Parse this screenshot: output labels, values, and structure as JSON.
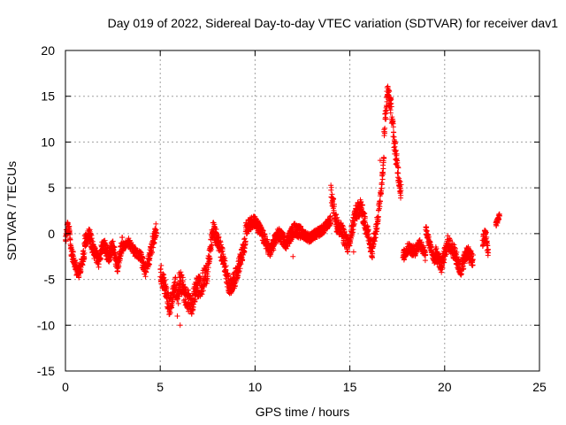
{
  "chart_data": {
    "type": "scatter",
    "title": "Day 019 of 2022, Sidereal Day-to-day VTEC variation (SDTVAR) for receiver dav1",
    "xlabel": "GPS time / hours",
    "ylabel": "SDTVAR / TECUs",
    "xlim": [
      0,
      25
    ],
    "ylim": [
      -15,
      20
    ],
    "xticks": [
      0,
      5,
      10,
      15,
      20,
      25
    ],
    "yticks": [
      -15,
      -10,
      -5,
      0,
      5,
      10,
      15,
      20
    ],
    "grid": true,
    "marker": "plus",
    "color": "#ff0000",
    "series": [
      {
        "name": "dav1",
        "segments": [
          {
            "x0": 0.0,
            "x1": 0.3,
            "y": [
              -1.0,
              1.0,
              0.5,
              -2.0
            ],
            "spread": 1.2
          },
          {
            "x0": 0.3,
            "x1": 1.0,
            "y": [
              -2.0,
              -3.0,
              -4.5,
              -3.5,
              -2.0
            ],
            "spread": 1.3
          },
          {
            "x0": 1.0,
            "x1": 3.0,
            "y": [
              -1.0,
              0.0,
              -2.0,
              -3.0,
              -1.0,
              -2.5,
              -1.5,
              -3.5,
              -1.0
            ],
            "spread": 1.6
          },
          {
            "x0": 3.0,
            "x1": 4.0,
            "y": [
              -1.5,
              -1.0,
              -2.0,
              -2.5
            ],
            "spread": 1.0
          },
          {
            "x0": 4.0,
            "x1": 4.8,
            "y": [
              -3.0,
              -4.0,
              -3.0,
              -1.0,
              0.5
            ],
            "spread": 1.6
          },
          {
            "x0": 5.0,
            "x1": 6.0,
            "y": [
              -4.0,
              -6.0,
              -8.0,
              -5.5,
              -7.0
            ],
            "spread": 2.2
          },
          {
            "x0": 6.0,
            "x1": 7.5,
            "y": [
              -5.0,
              -6.5,
              -8.0,
              -6.0,
              -5.5,
              -4.0
            ],
            "spread": 2.4
          },
          {
            "x0": 7.5,
            "x1": 9.5,
            "y": [
              -4.0,
              0.5,
              -1.0,
              -3.0,
              -6.0,
              -5.0,
              -3.0,
              -1.0
            ],
            "spread": 1.8
          },
          {
            "x0": 9.5,
            "x1": 12.5,
            "y": [
              0.5,
              1.5,
              0.0,
              -2.0,
              0.0,
              -1.0,
              0.5,
              0.0
            ],
            "spread": 1.4
          },
          {
            "x0": 12.5,
            "x1": 14.0,
            "y": [
              0.0,
              -0.5,
              0.0,
              0.5,
              1.5
            ],
            "spread": 1.0
          },
          {
            "x0": 14.0,
            "x1": 16.2,
            "y": [
              4.5,
              1.0,
              0.0,
              -1.5,
              2.0,
              3.0,
              0.5,
              -2.0
            ],
            "spread": 1.8
          },
          {
            "x0": 16.2,
            "x1": 16.8,
            "y": [
              -1.0,
              0.0,
              2.0,
              5.0,
              8.0
            ],
            "spread": 1.4
          },
          {
            "x0": 16.8,
            "x1": 17.7,
            "y": [
              11.0,
              15.5,
              14.0,
              10.0,
              7.0,
              4.5
            ],
            "spread": 2.0
          },
          {
            "x0": 17.8,
            "x1": 19.0,
            "y": [
              -2.5,
              -1.5,
              -2.0,
              -1.0,
              -2.5
            ],
            "spread": 1.2
          },
          {
            "x0": 19.0,
            "x1": 19.5,
            "y": [
              0.5,
              -1.5,
              -3.0
            ],
            "spread": 1.0
          },
          {
            "x0": 19.5,
            "x1": 21.5,
            "y": [
              -2.0,
              -3.5,
              -1.0,
              -2.0,
              -4.0,
              -2.0,
              -3.0
            ],
            "spread": 1.6
          },
          {
            "x0": 22.0,
            "x1": 22.3,
            "y": [
              -1.0,
              0.0,
              -2.0
            ],
            "spread": 1.5
          },
          {
            "x0": 22.7,
            "x1": 22.9,
            "y": [
              1.0,
              2.0
            ],
            "spread": 0.6
          }
        ],
        "outliers": [
          {
            "x": 6.05,
            "y": -10.0
          },
          {
            "x": 5.9,
            "y": -9.0
          },
          {
            "x": 16.6,
            "y": 8.0
          },
          {
            "x": 15.2,
            "y": -2.0
          },
          {
            "x": 12.0,
            "y": -2.5
          }
        ]
      }
    ]
  }
}
